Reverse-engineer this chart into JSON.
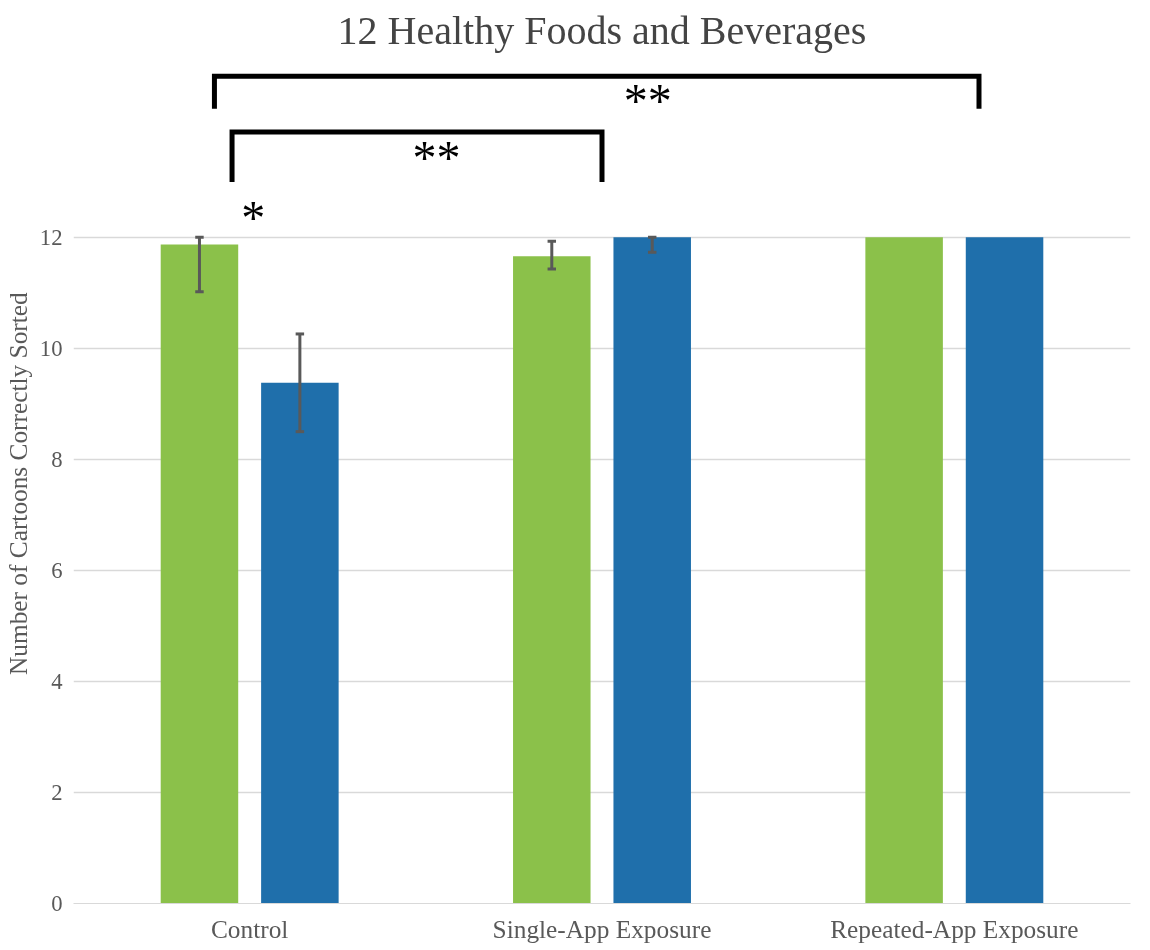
{
  "chart_data": {
    "type": "bar",
    "title": "12 Healthy Foods and Beverages",
    "ylabel": "Number of  Cartoons Correctly Sorted",
    "categories": [
      "Control",
      "Single-App Exposure",
      "Repeated-App Exposure"
    ],
    "series": [
      {
        "color": "#8bc14a",
        "values": [
          11.87,
          11.66,
          12
        ],
        "errors": [
          [
            11.02,
            12
          ],
          [
            11.43,
            11.93
          ],
          null
        ]
      },
      {
        "color": "#1f6fab",
        "values": [
          9.38,
          12,
          12
        ],
        "errors": [
          [
            8.5,
            10.26
          ],
          [
            11.73,
            12
          ],
          null
        ]
      }
    ],
    "ylim": [
      0,
      12
    ],
    "yticks": [
      0,
      2,
      4,
      6,
      8,
      10,
      12
    ],
    "grid": "y",
    "annotations": [
      "**",
      "**",
      "*"
    ]
  }
}
